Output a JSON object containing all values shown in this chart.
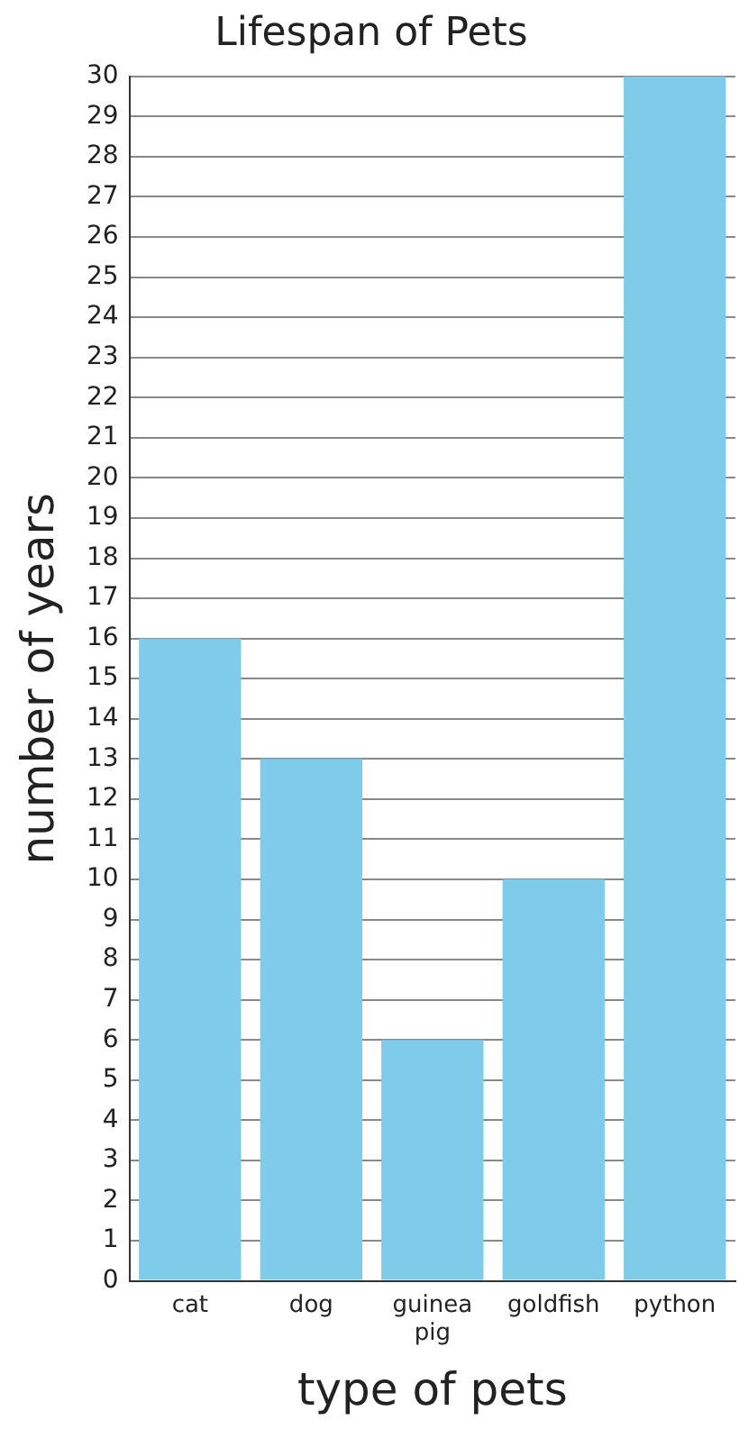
{
  "chart_data": {
    "type": "bar",
    "title": "Lifespan of Pets",
    "xlabel": "type of pets",
    "ylabel": "number of years",
    "categories": [
      "cat",
      "dog",
      "guinea pig",
      "goldfish",
      "python"
    ],
    "values": [
      16,
      13,
      6,
      10,
      30
    ],
    "color": "#7ecbea",
    "ylim": [
      0,
      30
    ],
    "yticks": [
      0,
      1,
      2,
      3,
      4,
      5,
      6,
      7,
      8,
      9,
      10,
      11,
      12,
      13,
      14,
      15,
      16,
      17,
      18,
      19,
      20,
      21,
      22,
      23,
      24,
      25,
      26,
      27,
      28,
      29,
      30
    ],
    "grid": "y",
    "legend": false
  }
}
